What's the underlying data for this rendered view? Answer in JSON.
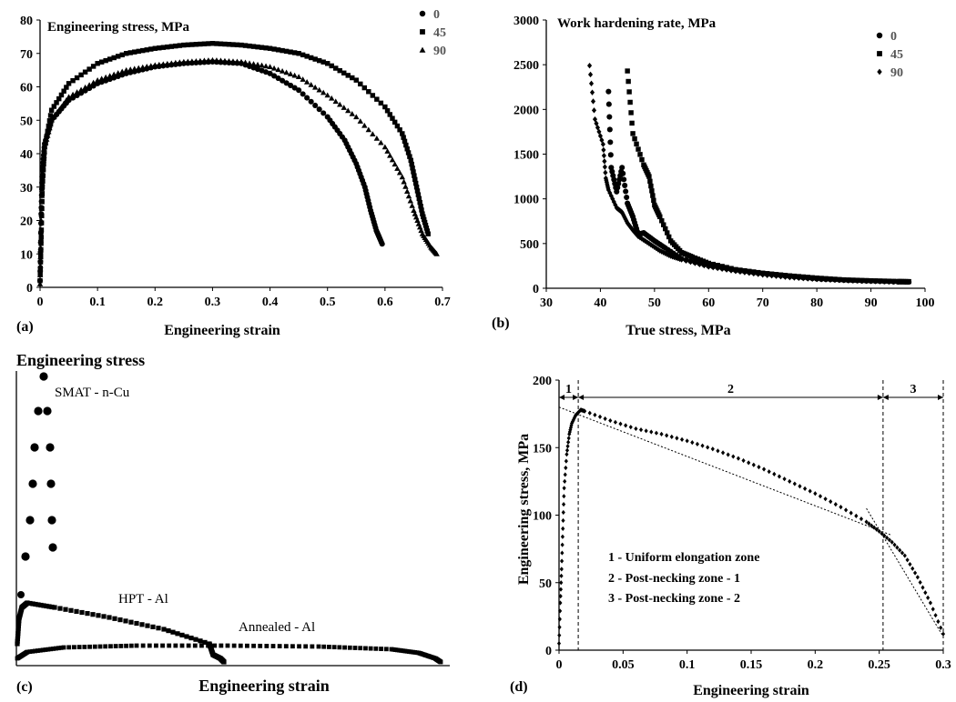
{
  "chart_data": [
    {
      "panel_label": "(a)",
      "type": "scatter",
      "title": "Engineering stress, MPa",
      "xlabel": "Engineering strain",
      "ylabel": "",
      "xlim": [
        0,
        0.7
      ],
      "ylim": [
        0,
        80
      ],
      "xticks": [
        "0",
        "0.1",
        "0.2",
        "0.3",
        "0.4",
        "0.5",
        "0.6",
        "0.7"
      ],
      "yticks": [
        "0",
        "10",
        "20",
        "30",
        "40",
        "50",
        "60",
        "70",
        "80"
      ],
      "legend_position": "top-right",
      "series": [
        {
          "name": "0",
          "marker": "circle",
          "anchors": [
            [
              0,
              2
            ],
            [
              0.002,
              22
            ],
            [
              0.004,
              35
            ],
            [
              0.008,
              43
            ],
            [
              0.02,
              50
            ],
            [
              0.05,
              56
            ],
            [
              0.1,
              61
            ],
            [
              0.15,
              64
            ],
            [
              0.2,
              66
            ],
            [
              0.25,
              67
            ],
            [
              0.3,
              67.5
            ],
            [
              0.35,
              67
            ],
            [
              0.4,
              64
            ],
            [
              0.45,
              59
            ],
            [
              0.5,
              51
            ],
            [
              0.53,
              44
            ],
            [
              0.55,
              37
            ],
            [
              0.565,
              30
            ],
            [
              0.575,
              23
            ],
            [
              0.585,
              17
            ],
            [
              0.595,
              13
            ]
          ]
        },
        {
          "name": "45",
          "marker": "square",
          "anchors": [
            [
              0,
              2
            ],
            [
              0.002,
              15
            ],
            [
              0.004,
              30
            ],
            [
              0.008,
              42
            ],
            [
              0.02,
              53
            ],
            [
              0.05,
              61
            ],
            [
              0.1,
              67
            ],
            [
              0.15,
              70
            ],
            [
              0.2,
              71.5
            ],
            [
              0.25,
              72.5
            ],
            [
              0.3,
              73
            ],
            [
              0.35,
              72.5
            ],
            [
              0.4,
              71.5
            ],
            [
              0.45,
              70
            ],
            [
              0.5,
              67
            ],
            [
              0.55,
              62
            ],
            [
              0.6,
              54
            ],
            [
              0.63,
              46
            ],
            [
              0.645,
              38
            ],
            [
              0.655,
              30
            ],
            [
              0.665,
              22
            ],
            [
              0.675,
              16
            ]
          ]
        },
        {
          "name": "90",
          "marker": "triangle",
          "anchors": [
            [
              0,
              1
            ],
            [
              0.002,
              20
            ],
            [
              0.004,
              33
            ],
            [
              0.008,
              42
            ],
            [
              0.02,
              50
            ],
            [
              0.05,
              57
            ],
            [
              0.1,
              62
            ],
            [
              0.15,
              65
            ],
            [
              0.2,
              66.5
            ],
            [
              0.25,
              67.5
            ],
            [
              0.3,
              68
            ],
            [
              0.35,
              67.5
            ],
            [
              0.4,
              66
            ],
            [
              0.45,
              63
            ],
            [
              0.5,
              57.5
            ],
            [
              0.55,
              51
            ],
            [
              0.6,
              42
            ],
            [
              0.63,
              33
            ],
            [
              0.65,
              23
            ],
            [
              0.665,
              16
            ],
            [
              0.68,
              12
            ],
            [
              0.69,
              10
            ]
          ]
        }
      ]
    },
    {
      "panel_label": "(b)",
      "type": "scatter",
      "title": "Work hardening rate, MPa",
      "xlabel": "True stress, MPa",
      "ylabel": "",
      "xlim": [
        30,
        100
      ],
      "ylim": [
        0,
        3000
      ],
      "xticks": [
        "30",
        "40",
        "50",
        "60",
        "70",
        "80",
        "90",
        "100"
      ],
      "yticks": [
        "0",
        "500",
        "1000",
        "1500",
        "2000",
        "2500",
        "3000"
      ],
      "legend_position": "top-right",
      "series": [
        {
          "name": "0",
          "marker": "circle",
          "anchors": [
            [
              41.5,
              2200
            ],
            [
              42,
              1350
            ],
            [
              43,
              1080
            ],
            [
              44,
              1350
            ],
            [
              45,
              950
            ],
            [
              46,
              800
            ],
            [
              47,
              600
            ],
            [
              48,
              620
            ],
            [
              50,
              530
            ],
            [
              52,
              450
            ],
            [
              55,
              330
            ],
            [
              60,
              250
            ],
            [
              65,
              200
            ],
            [
              70,
              160
            ],
            [
              75,
              130
            ],
            [
              80,
              105
            ],
            [
              85,
              90
            ],
            [
              90,
              80
            ],
            [
              95,
              72
            ],
            [
              97,
              70
            ]
          ]
        },
        {
          "name": "45",
          "marker": "square",
          "anchors": [
            [
              45,
              2430
            ],
            [
              46,
              1730
            ],
            [
              48,
              1380
            ],
            [
              49,
              1250
            ],
            [
              50,
              930
            ],
            [
              51,
              800
            ],
            [
              53,
              530
            ],
            [
              55,
              400
            ],
            [
              57,
              350
            ],
            [
              60,
              280
            ],
            [
              65,
              210
            ],
            [
              70,
              170
            ],
            [
              75,
              140
            ],
            [
              80,
              115
            ],
            [
              85,
              95
            ],
            [
              90,
              85
            ],
            [
              95,
              77
            ],
            [
              97,
              75
            ]
          ]
        },
        {
          "name": "90",
          "marker": "diamond",
          "anchors": [
            [
              38,
              2490
            ],
            [
              39,
              1890
            ],
            [
              40.5,
              1610
            ],
            [
              41,
              1230
            ],
            [
              41.5,
              1100
            ],
            [
              43,
              900
            ],
            [
              44,
              850
            ],
            [
              45,
              730
            ],
            [
              46,
              650
            ],
            [
              47,
              580
            ],
            [
              49,
              500
            ],
            [
              51,
              420
            ],
            [
              53,
              360
            ],
            [
              55,
              320
            ],
            [
              60,
              240
            ],
            [
              65,
              190
            ],
            [
              70,
              150
            ],
            [
              75,
              120
            ],
            [
              80,
              100
            ],
            [
              85,
              88
            ],
            [
              90,
              78
            ],
            [
              95,
              70
            ]
          ]
        }
      ]
    },
    {
      "panel_label": "(c)",
      "type": "scatter",
      "title": "Engineering stress",
      "xlabel": "Engineering strain",
      "annotations": [
        "SMAT - n-Cu",
        "HPT - Al",
        "Annealed - Al"
      ]
    },
    {
      "panel_label": "(d)",
      "type": "scatter",
      "title": "",
      "xlabel": "Engineering strain",
      "ylabel": "Engineering stress, MPa",
      "xlim": [
        0,
        0.3
      ],
      "ylim": [
        0,
        200
      ],
      "xticks": [
        "0",
        "0.05",
        "0.1",
        "0.15",
        "0.2",
        "0.25",
        "0.3"
      ],
      "yticks": [
        "0",
        "50",
        "100",
        "150",
        "200"
      ],
      "zone_labels": [
        "1",
        "2",
        "3"
      ],
      "zone_boundaries": [
        0.015,
        0.253,
        0.3
      ],
      "legend_lines": [
        "1 - Uniform elongation zone",
        "2 - Post-necking zone - 1",
        "3 - Post-necking zone - 2"
      ],
      "series": [
        {
          "name": "",
          "marker": "diamond",
          "anchors": [
            [
              0,
              5
            ],
            [
              0.001,
              35
            ],
            [
              0.002,
              60
            ],
            [
              0.003,
              90
            ],
            [
              0.004,
              120
            ],
            [
              0.006,
              145
            ],
            [
              0.008,
              160
            ],
            [
              0.01,
              168
            ],
            [
              0.013,
              174
            ],
            [
              0.017,
              178
            ],
            [
              0.02,
              177
            ],
            [
              0.04,
              170
            ],
            [
              0.06,
              164
            ],
            [
              0.08,
              160
            ],
            [
              0.1,
              155
            ],
            [
              0.12,
              149
            ],
            [
              0.14,
              142
            ],
            [
              0.16,
              134
            ],
            [
              0.18,
              125
            ],
            [
              0.2,
              116
            ],
            [
              0.22,
              106
            ],
            [
              0.24,
              95
            ],
            [
              0.25,
              88
            ],
            [
              0.26,
              80
            ],
            [
              0.27,
              70
            ],
            [
              0.28,
              54
            ],
            [
              0.29,
              35
            ],
            [
              0.3,
              12
            ]
          ]
        }
      ]
    }
  ]
}
